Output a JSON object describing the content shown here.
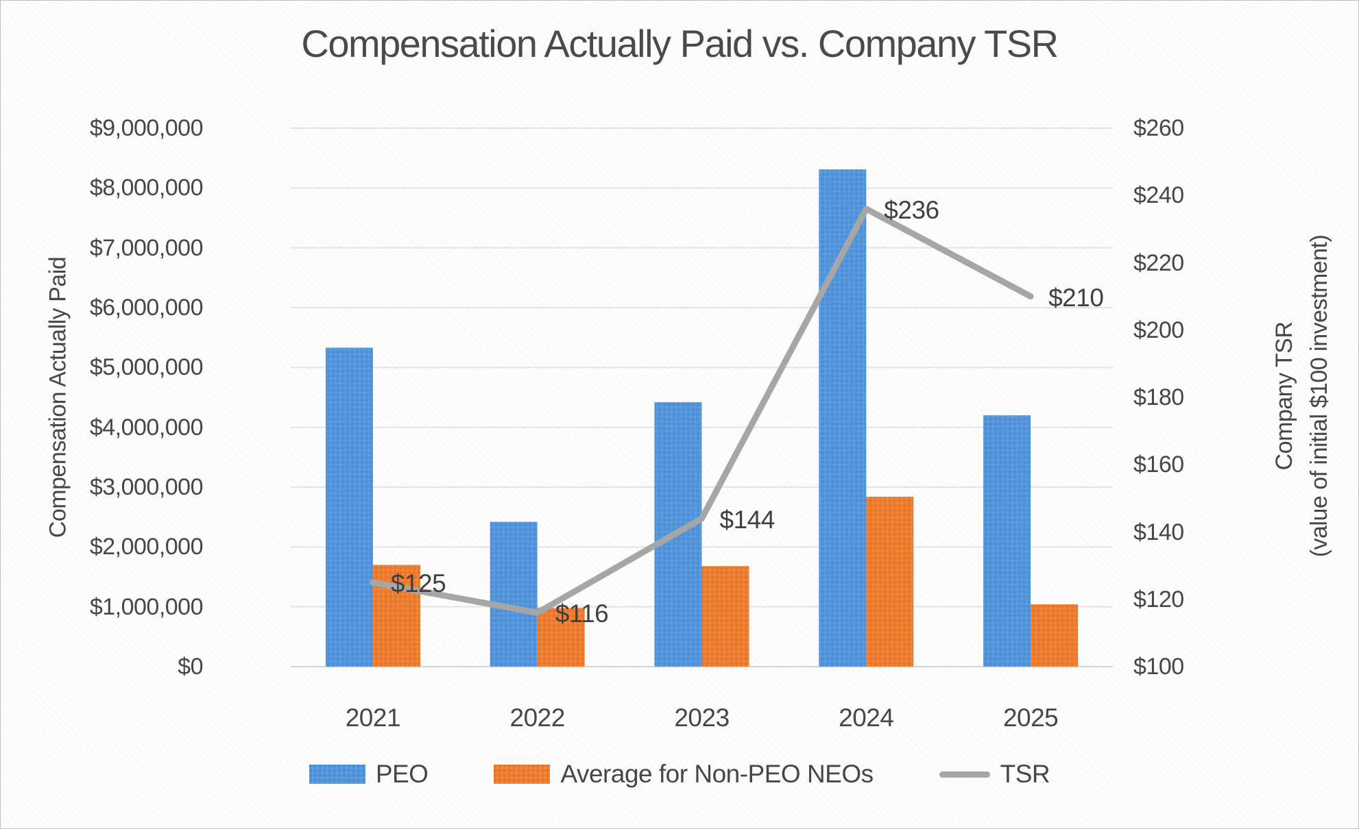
{
  "title": "Compensation Actually Paid vs. Company TSR",
  "chart_data": {
    "type": "bar+line combo",
    "categories": [
      "2021",
      "2022",
      "2023",
      "2024",
      "2025"
    ],
    "series": [
      {
        "name": "PEO",
        "type": "bar",
        "axis": "left",
        "color": "#5496DB",
        "values": [
          5330000,
          2420000,
          4420000,
          8310000,
          4200000
        ]
      },
      {
        "name": "Average for Non-PEO NEOs",
        "type": "bar",
        "axis": "left",
        "color": "#ED7D31",
        "values": [
          1700000,
          980000,
          1680000,
          2840000,
          1040000
        ]
      },
      {
        "name": "TSR",
        "type": "line",
        "axis": "right",
        "color": "#A6A6A6",
        "values": [
          125,
          116,
          144,
          236,
          210
        ],
        "point_labels": [
          "$125",
          "$116",
          "$144",
          "$236",
          "$210"
        ]
      }
    ],
    "left_axis": {
      "title": "Compensation Actually Paid",
      "min": 0,
      "max": 9000000,
      "tick_step": 1000000,
      "tick_labels_top_down": [
        "$9,000,000",
        "$8,000,000",
        "$7,000,000",
        "$6,000,000",
        "$5,000,000",
        "$4,000,000",
        "$3,000,000",
        "$2,000,000",
        "$1,000,000",
        "$0"
      ]
    },
    "right_axis": {
      "title_line1": "Company TSR",
      "title_line2": "(value of initial $100 investment)",
      "min": 100,
      "max": 260,
      "tick_step": 20,
      "tick_labels_top_down": [
        "$260",
        "$240",
        "$220",
        "$200",
        "$180",
        "$160",
        "$140",
        "$120",
        "$100"
      ]
    },
    "legend_position": "bottom",
    "grid": true,
    "colors": {
      "peo_bar": "#5496DB",
      "nonpeo_bar": "#ED7D31",
      "tsr_line": "#A6A6A6",
      "gridline": "#e7e1e7",
      "baseline": "#d9d3d9",
      "text": "#464646"
    }
  }
}
